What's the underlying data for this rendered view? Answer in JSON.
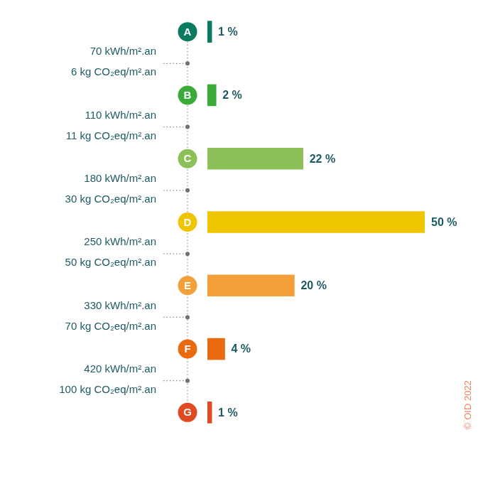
{
  "chart_data": {
    "type": "bar",
    "orientation": "horizontal",
    "categories": [
      "A",
      "B",
      "C",
      "D",
      "E",
      "F",
      "G"
    ],
    "values": [
      1,
      2,
      22,
      50,
      20,
      4,
      1
    ],
    "value_labels": [
      "1 %",
      "2 %",
      "22 %",
      "50 %",
      "20 %",
      "4 %",
      "1 %"
    ],
    "colors": [
      "#0b7a5f",
      "#3aab38",
      "#8cc15a",
      "#efc400",
      "#f4a03a",
      "#ea6a10",
      "#df4a22"
    ],
    "xlim": [
      0,
      50
    ],
    "data_labels": true,
    "tick_labels": "y",
    "grid": false,
    "annotations": [
      {
        "energy": "70 kWh/m².an",
        "co2": "6 kg CO₂eq/m².an"
      },
      {
        "energy": "110 kWh/m².an",
        "co2": "11 kg CO₂eq/m².an"
      },
      {
        "energy": "180 kWh/m².an",
        "co2": "30 kg CO₂eq/m².an"
      },
      {
        "energy": "250 kWh/m².an",
        "co2": "50 kg CO₂eq/m².an"
      },
      {
        "energy": "330 kWh/m².an",
        "co2": "70 kg CO₂eq/m².an"
      },
      {
        "energy": "420 kWh/m².an",
        "co2": "100 kg CO₂eq/m².an"
      }
    ],
    "credit": "© OID 2022"
  }
}
